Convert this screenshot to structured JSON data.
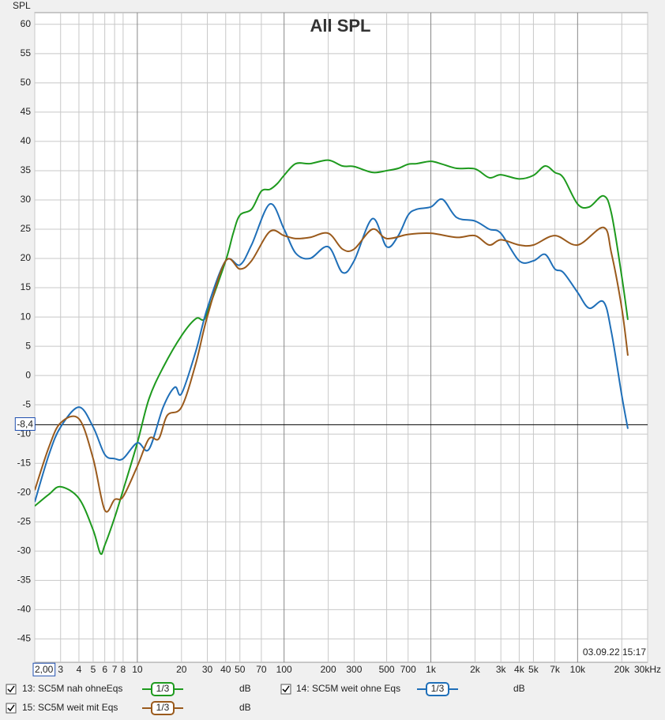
{
  "chart_data": {
    "type": "line",
    "title": "All SPL",
    "ylabel": "SPL",
    "timestamp": "03.09.22 15:17",
    "log_x": true,
    "grid": true,
    "xlim": [
      2,
      30000
    ],
    "ylim": [
      -49,
      62
    ],
    "xticks": [
      {
        "value": 2,
        "label": "2,00"
      },
      3,
      4,
      5,
      6,
      7,
      8,
      10,
      20,
      30,
      40,
      50,
      70,
      100,
      200,
      300,
      500,
      700,
      {
        "value": 1000,
        "label": "1k"
      },
      {
        "value": 2000,
        "label": "2k"
      },
      {
        "value": 3000,
        "label": "3k"
      },
      {
        "value": 4000,
        "label": "4k"
      },
      {
        "value": 5000,
        "label": "5k"
      },
      {
        "value": 7000,
        "label": "7k"
      },
      {
        "value": 10000,
        "label": "10k"
      },
      {
        "value": 20000,
        "label": "20k"
      },
      {
        "value": 30000,
        "label": "30kHz"
      }
    ],
    "yticks": [
      60,
      55,
      50,
      45,
      40,
      35,
      30,
      25,
      20,
      15,
      10,
      5,
      0,
      -5,
      -10,
      -15,
      -20,
      -25,
      -30,
      -35,
      -40,
      -45
    ],
    "cursor": {
      "value": -8.4,
      "label": "-8,4"
    },
    "series": [
      {
        "name": "13: SC5M nah ohneEqs",
        "color": "#1e9a1e",
        "smoothing": "1/3",
        "unit": "dB",
        "x": [
          2,
          2.5,
          3,
          4,
          5,
          5.6,
          6,
          7,
          8,
          10,
          12,
          15,
          20,
          25,
          28,
          30,
          40,
          45,
          50,
          60,
          70,
          80,
          90,
          100,
          120,
          150,
          200,
          250,
          300,
          400,
          500,
          600,
          700,
          800,
          1000,
          1200,
          1500,
          2000,
          2500,
          3000,
          4000,
          5000,
          6000,
          7000,
          8000,
          10000,
          12000,
          15000,
          17000,
          20000,
          22000
        ],
        "values": [
          -22.3,
          -20.3,
          -19,
          -21,
          -26.4,
          -30.4,
          -29,
          -24.3,
          -19.6,
          -11.5,
          -4,
          1.4,
          6.8,
          9.7,
          9.5,
          10.8,
          19.6,
          24.3,
          27.4,
          28.4,
          31.5,
          31.8,
          32.8,
          34.2,
          36.2,
          36.2,
          36.8,
          35.8,
          35.7,
          34.7,
          35.0,
          35.4,
          36.1,
          36.2,
          36.6,
          36.1,
          35.4,
          35.3,
          33.8,
          34.3,
          33.6,
          34.2,
          35.8,
          34.7,
          33.8,
          29.3,
          28.8,
          30.7,
          27.7,
          16.9,
          9.5
        ]
      },
      {
        "name": "14: SC5M weit ohne Eqs",
        "color": "#1f6fb8",
        "smoothing": "1/3",
        "unit": "dB",
        "x": [
          2,
          2.5,
          3,
          4,
          5,
          6,
          7,
          8,
          10,
          12,
          15,
          18,
          20,
          25,
          30,
          40,
          50,
          60,
          80,
          100,
          120,
          150,
          200,
          250,
          300,
          400,
          500,
          600,
          700,
          800,
          1000,
          1200,
          1500,
          2000,
          2500,
          3000,
          4000,
          5000,
          6000,
          7000,
          8000,
          10000,
          12000,
          15000,
          17000,
          20000,
          22000
        ],
        "values": [
          -21.6,
          -13.5,
          -8.8,
          -5.4,
          -8.8,
          -13.5,
          -14.2,
          -14.2,
          -11.5,
          -12.6,
          -5.4,
          -2,
          -3.1,
          4.1,
          11.5,
          19.6,
          18.9,
          22.3,
          29.3,
          25,
          20.9,
          20,
          22,
          17.6,
          19.6,
          26.8,
          22,
          23.9,
          27.4,
          28.4,
          28.8,
          30.1,
          27,
          26.4,
          25,
          24.3,
          19.6,
          19.6,
          20.7,
          18.2,
          17.6,
          14.2,
          11.5,
          12.6,
          7.4,
          -3.4,
          -9.1
        ]
      },
      {
        "name": "15: SC5M weit mit Eqs",
        "color": "#9a5a1c",
        "smoothing": "1/3",
        "unit": "dB",
        "x": [
          2,
          2.5,
          3,
          4,
          5,
          6,
          7,
          8,
          10,
          12,
          14,
          16,
          20,
          25,
          30,
          40,
          50,
          60,
          80,
          100,
          120,
          150,
          200,
          250,
          300,
          400,
          500,
          700,
          1000,
          1500,
          2000,
          2500,
          3000,
          4000,
          5000,
          7000,
          10000,
          15000,
          17000,
          20000,
          22000
        ],
        "values": [
          -19.6,
          -12.2,
          -8.1,
          -7.4,
          -14.2,
          -23,
          -21.2,
          -20.7,
          -15.5,
          -10.8,
          -10.8,
          -6.8,
          -5.4,
          2,
          10.1,
          19.6,
          18.2,
          19.6,
          24.6,
          23.9,
          23.4,
          23.6,
          24.3,
          21.6,
          21.6,
          25,
          23.4,
          24.1,
          24.3,
          23.6,
          23.9,
          22.3,
          23.2,
          22.3,
          22.3,
          23.9,
          22.3,
          25.3,
          20.9,
          11.5,
          3.4
        ]
      }
    ]
  }
}
